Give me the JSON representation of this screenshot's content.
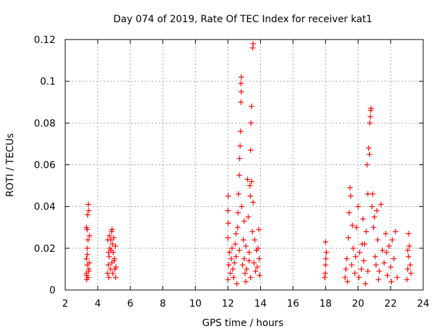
{
  "chart_data": {
    "type": "scatter",
    "title": "Day 074 of 2019, Rate Of TEC Index for receiver kat1",
    "xlabel": "GPS time / hours",
    "ylabel": "ROTI / TECUs",
    "xlim": [
      2,
      24
    ],
    "ylim": [
      0,
      0.12
    ],
    "x_ticks": [
      2,
      4,
      6,
      8,
      10,
      12,
      14,
      16,
      18,
      20,
      22,
      24
    ],
    "y_ticks": [
      0,
      0.02,
      0.04,
      0.06,
      0.08,
      0.1,
      0.12
    ],
    "x_tick_labels": [
      "2",
      "4",
      "6",
      "8",
      "10",
      "12",
      "14",
      "16",
      "18",
      "20",
      "22",
      "24"
    ],
    "y_tick_labels": [
      "0",
      "0.02",
      "0.04",
      "0.06",
      "0.08",
      "0.1",
      "0.12"
    ],
    "grid": true,
    "marker": "plus",
    "marker_color": "#ff0000",
    "series": [
      {
        "name": "ROTI",
        "points": [
          [
            3.3,
            0.008
          ],
          [
            3.35,
            0.012
          ],
          [
            3.4,
            0.006
          ],
          [
            3.3,
            0.015
          ],
          [
            3.45,
            0.01
          ],
          [
            3.35,
            0.02
          ],
          [
            3.4,
            0.024
          ],
          [
            3.3,
            0.03
          ],
          [
            3.35,
            0.029
          ],
          [
            3.42,
            0.041
          ],
          [
            3.45,
            0.038
          ],
          [
            3.38,
            0.036
          ],
          [
            3.32,
            0.005
          ],
          [
            3.48,
            0.013
          ],
          [
            3.36,
            0.017
          ],
          [
            3.44,
            0.009
          ],
          [
            3.5,
            0.026
          ],
          [
            3.31,
            0.007
          ],
          [
            4.6,
            0.008
          ],
          [
            4.65,
            0.012
          ],
          [
            4.7,
            0.016
          ],
          [
            4.75,
            0.02
          ],
          [
            4.8,
            0.024
          ],
          [
            4.85,
            0.028
          ],
          [
            4.9,
            0.022
          ],
          [
            4.95,
            0.018
          ],
          [
            5.0,
            0.014
          ],
          [
            5.05,
            0.01
          ],
          [
            5.1,
            0.006
          ],
          [
            4.62,
            0.024
          ],
          [
            4.68,
            0.006
          ],
          [
            4.72,
            0.026
          ],
          [
            4.78,
            0.01
          ],
          [
            4.82,
            0.019
          ],
          [
            4.88,
            0.029
          ],
          [
            4.92,
            0.008
          ],
          [
            4.98,
            0.025
          ],
          [
            5.02,
            0.015
          ],
          [
            5.08,
            0.021
          ],
          [
            5.12,
            0.011
          ],
          [
            4.66,
            0.018
          ],
          [
            4.86,
            0.013
          ],
          [
            12.0,
            0.005
          ],
          [
            12.05,
            0.012
          ],
          [
            12.1,
            0.018
          ],
          [
            12.0,
            0.025
          ],
          [
            12.02,
            0.032
          ],
          [
            12.0,
            0.038
          ],
          [
            12.02,
            0.045
          ],
          [
            12.15,
            0.008
          ],
          [
            12.2,
            0.015
          ],
          [
            12.25,
            0.02
          ],
          [
            12.3,
            0.01
          ],
          [
            12.35,
            0.006
          ],
          [
            12.4,
            0.013
          ],
          [
            12.45,
            0.022
          ],
          [
            12.5,
            0.016
          ],
          [
            12.55,
            0.003
          ],
          [
            12.6,
            0.03
          ],
          [
            12.62,
            0.037
          ],
          [
            12.65,
            0.046
          ],
          [
            12.7,
            0.055
          ],
          [
            12.72,
            0.063
          ],
          [
            12.75,
            0.069
          ],
          [
            12.78,
            0.076
          ],
          [
            12.8,
            0.09
          ],
          [
            12.82,
            0.095
          ],
          [
            12.8,
            0.099
          ],
          [
            12.82,
            0.102
          ],
          [
            12.85,
            0.04
          ],
          [
            12.9,
            0.012
          ],
          [
            12.95,
            0.024
          ],
          [
            13.0,
            0.015
          ],
          [
            13.05,
            0.008
          ],
          [
            13.1,
            0.021
          ],
          [
            13.15,
            0.01
          ],
          [
            13.2,
            0.053
          ],
          [
            13.25,
            0.035
          ],
          [
            13.3,
            0.018
          ],
          [
            13.35,
            0.05
          ],
          [
            13.38,
            0.045
          ],
          [
            13.4,
            0.067
          ],
          [
            13.42,
            0.08
          ],
          [
            13.45,
            0.088
          ],
          [
            13.45,
            0.052
          ],
          [
            13.5,
            0.028
          ],
          [
            13.52,
            0.116
          ],
          [
            13.55,
            0.118
          ],
          [
            13.55,
            0.042
          ],
          [
            13.6,
            0.013
          ],
          [
            13.65,
            0.024
          ],
          [
            13.7,
            0.009
          ],
          [
            13.75,
            0.019
          ],
          [
            13.8,
            0.011
          ],
          [
            13.85,
            0.02
          ],
          [
            13.9,
            0.029
          ],
          [
            13.95,
            0.007
          ],
          [
            13.92,
            0.015
          ],
          [
            13.4,
            0.006
          ],
          [
            13.3,
            0.014
          ],
          [
            12.7,
            0.019
          ],
          [
            12.5,
            0.027
          ],
          [
            13.0,
            0.033
          ],
          [
            13.1,
            0.004
          ],
          [
            17.95,
            0.006
          ],
          [
            18.0,
            0.012
          ],
          [
            18.05,
            0.018
          ],
          [
            18.0,
            0.023
          ],
          [
            17.98,
            0.008
          ],
          [
            18.02,
            0.015
          ],
          [
            19.2,
            0.006
          ],
          [
            19.3,
            0.015
          ],
          [
            19.4,
            0.025
          ],
          [
            19.45,
            0.037
          ],
          [
            19.5,
            0.049
          ],
          [
            19.55,
            0.045
          ],
          [
            19.6,
            0.012
          ],
          [
            19.7,
            0.02
          ],
          [
            19.8,
            0.008
          ],
          [
            19.9,
            0.03
          ],
          [
            20.0,
            0.04
          ],
          [
            20.1,
            0.018
          ],
          [
            20.2,
            0.01
          ],
          [
            20.3,
            0.034
          ],
          [
            20.4,
            0.022
          ],
          [
            20.45,
            0.003
          ],
          [
            20.5,
            0.028
          ],
          [
            20.55,
            0.06
          ],
          [
            20.6,
            0.046
          ],
          [
            20.65,
            0.068
          ],
          [
            20.7,
            0.065
          ],
          [
            20.72,
            0.08
          ],
          [
            20.75,
            0.083
          ],
          [
            20.78,
            0.086
          ],
          [
            20.8,
            0.087
          ],
          [
            20.85,
            0.04
          ],
          [
            20.9,
            0.046
          ],
          [
            20.95,
            0.03
          ],
          [
            21.0,
            0.035
          ],
          [
            21.05,
            0.016
          ],
          [
            21.1,
            0.012
          ],
          [
            21.15,
            0.038
          ],
          [
            21.2,
            0.024
          ],
          [
            21.3,
            0.009
          ],
          [
            21.4,
            0.041
          ],
          [
            21.5,
            0.019
          ],
          [
            21.6,
            0.013
          ],
          [
            21.7,
            0.027
          ],
          [
            21.8,
            0.007
          ],
          [
            21.9,
            0.021
          ],
          [
            22.0,
            0.011
          ],
          [
            22.1,
            0.024
          ],
          [
            22.2,
            0.015
          ],
          [
            22.3,
            0.028
          ],
          [
            22.4,
            0.006
          ],
          [
            19.25,
            0.01
          ],
          [
            19.35,
            0.004
          ],
          [
            19.65,
            0.031
          ],
          [
            19.85,
            0.016
          ],
          [
            20.05,
            0.006
          ],
          [
            20.25,
            0.022
          ],
          [
            20.35,
            0.014
          ],
          [
            20.6,
            0.009
          ],
          [
            21.25,
            0.005
          ],
          [
            21.75,
            0.018
          ],
          [
            22.05,
            0.004
          ],
          [
            23.0,
            0.005
          ],
          [
            23.05,
            0.01
          ],
          [
            23.1,
            0.016
          ],
          [
            23.15,
            0.021
          ],
          [
            23.1,
            0.027
          ],
          [
            23.2,
            0.012
          ],
          [
            23.25,
            0.008
          ],
          [
            23.05,
            0.019
          ]
        ]
      }
    ]
  }
}
